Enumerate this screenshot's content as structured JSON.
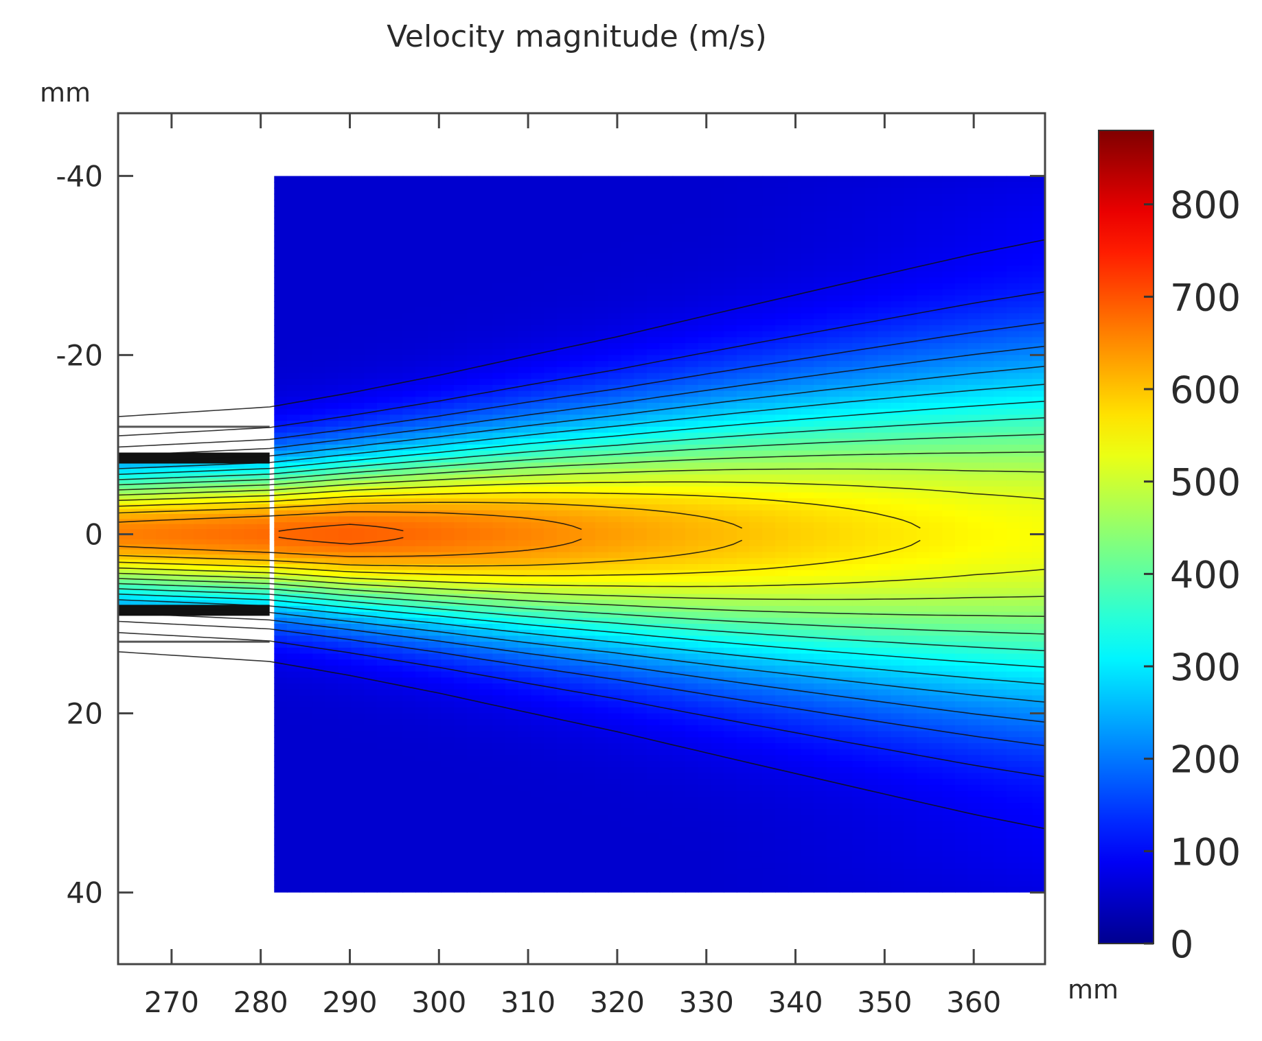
{
  "chart_data": {
    "type": "heatmap",
    "title": "Velocity magnitude (m/s)",
    "x_unit_label": "mm",
    "y_unit_label": "mm",
    "xlim": [
      264,
      368
    ],
    "ylim": [
      -47,
      48
    ],
    "y_inverted": true,
    "x_ticks": [
      270,
      280,
      290,
      300,
      310,
      320,
      330,
      340,
      350,
      360
    ],
    "y_ticks": [
      -40,
      -20,
      0,
      20,
      40
    ],
    "colorbar": {
      "min": 0,
      "max": 880,
      "ticks": [
        0,
        100,
        200,
        300,
        400,
        500,
        600,
        700,
        800
      ],
      "colormap": [
        "#00008f",
        "#0000ff",
        "#00ffff",
        "#ffff00",
        "#ff0000",
        "#800000"
      ]
    },
    "domain": {
      "nozzle": {
        "x_start": 264,
        "x_end": 281,
        "inner_half_width": 8.5,
        "outer_half_width": 12
      },
      "chamber": {
        "x_start": 281.5,
        "x_end": 368,
        "y_min": -40,
        "y_max": 40
      }
    },
    "jet_profile": {
      "x": [
        264,
        281,
        290,
        300,
        310,
        320,
        330,
        340,
        350,
        360,
        368
      ],
      "centerline_velocity": [
        660,
        680,
        690,
        675,
        655,
        632,
        610,
        588,
        568,
        550,
        540
      ],
      "half_width_mm": [
        5.2,
        5.6,
        6.2,
        7.0,
        7.9,
        8.8,
        9.8,
        10.8,
        11.8,
        12.8,
        13.5
      ]
    },
    "ambient_velocity": 55
  }
}
